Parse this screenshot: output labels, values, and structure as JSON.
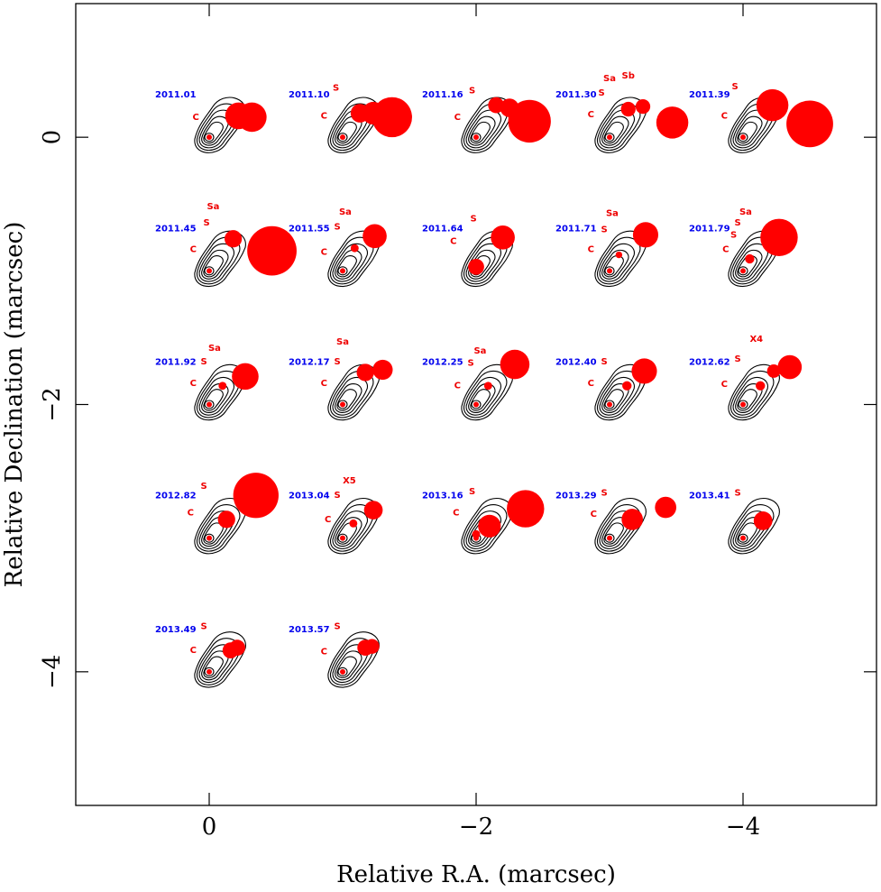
{
  "chart_data": {
    "type": "scatter",
    "title": "",
    "xlabel": "Relative R.A. (marcsec)",
    "ylabel": "Relative Declination (marcsec)",
    "xlim": [
      1.0,
      -5.0
    ],
    "ylim": [
      -5.0,
      1.0
    ],
    "xticks": [
      0,
      -2,
      -4
    ],
    "yticks": [
      0,
      -2,
      -4
    ],
    "xtick_labels": [
      "0",
      "−2",
      "−4"
    ],
    "ytick_labels": [
      "0",
      "−2",
      "−4"
    ],
    "grid": false,
    "legend": "none",
    "colors": {
      "epoch_label": "#0000ee",
      "component": "#ff0000",
      "component_label": "#ee0000",
      "contour": "#000000"
    },
    "epochs": [
      {
        "label": "2011.01",
        "core": [
          0.0,
          0.0
        ],
        "components": [
          {
            "x": -0.22,
            "y": 0.16,
            "r": 0.2
          },
          {
            "x": -0.32,
            "y": 0.15,
            "r": 0.22
          }
        ],
        "labels": [
          {
            "text": "C",
            "x": 0.1,
            "y": 0.13
          }
        ]
      },
      {
        "label": "2011.10",
        "core": [
          -1.0,
          0.0
        ],
        "components": [
          {
            "x": -1.13,
            "y": 0.18,
            "r": 0.14
          },
          {
            "x": -1.23,
            "y": 0.18,
            "r": 0.17
          },
          {
            "x": -1.37,
            "y": 0.15,
            "r": 0.3
          }
        ],
        "labels": [
          {
            "text": "C",
            "x": -0.86,
            "y": 0.14
          },
          {
            "text": "S",
            "x": -0.95,
            "y": 0.35
          }
        ]
      },
      {
        "label": "2011.16",
        "core": [
          -2.0,
          0.0
        ],
        "components": [
          {
            "x": -2.15,
            "y": 0.24,
            "r": 0.12
          },
          {
            "x": -2.25,
            "y": 0.22,
            "r": 0.14
          },
          {
            "x": -2.4,
            "y": 0.12,
            "r": 0.32
          }
        ],
        "labels": [
          {
            "text": "C",
            "x": -1.86,
            "y": 0.13
          },
          {
            "text": "S",
            "x": -1.97,
            "y": 0.33
          }
        ]
      },
      {
        "label": "2011.30",
        "core": [
          -3.0,
          0.0
        ],
        "components": [
          {
            "x": -3.14,
            "y": 0.21,
            "r": 0.11
          },
          {
            "x": -3.25,
            "y": 0.23,
            "r": 0.11
          },
          {
            "x": -3.47,
            "y": 0.11,
            "r": 0.24
          }
        ],
        "labels": [
          {
            "text": "C",
            "x": -2.86,
            "y": 0.15
          },
          {
            "text": "S",
            "x": -2.94,
            "y": 0.31
          },
          {
            "text": "Sa",
            "x": -3.0,
            "y": 0.42
          },
          {
            "text": "Sb",
            "x": -3.14,
            "y": 0.44
          }
        ]
      },
      {
        "label": "2011.39",
        "core": [
          -4.0,
          0.0
        ],
        "components": [
          {
            "x": -4.22,
            "y": 0.24,
            "r": 0.24
          },
          {
            "x": -4.5,
            "y": 0.1,
            "r": 0.35
          }
        ],
        "labels": [
          {
            "text": "C",
            "x": -3.86,
            "y": 0.14
          },
          {
            "text": "S",
            "x": -3.94,
            "y": 0.36
          }
        ]
      },
      {
        "label": "2011.45",
        "core": [
          0.0,
          -1.0
        ],
        "components": [
          {
            "x": -0.18,
            "y": -0.76,
            "r": 0.13
          },
          {
            "x": -0.47,
            "y": -0.85,
            "r": 0.37
          }
        ],
        "labels": [
          {
            "text": "C",
            "x": 0.12,
            "y": -0.86
          },
          {
            "text": "S",
            "x": 0.02,
            "y": -0.66
          },
          {
            "text": "Sa",
            "x": -0.03,
            "y": -0.54
          }
        ]
      },
      {
        "label": "2011.55",
        "core": [
          -1.0,
          -1.0
        ],
        "components": [
          {
            "x": -1.09,
            "y": -0.83,
            "r": 0.06
          },
          {
            "x": -1.24,
            "y": -0.74,
            "r": 0.18
          }
        ],
        "labels": [
          {
            "text": "C",
            "x": -0.86,
            "y": -0.88
          },
          {
            "text": "S",
            "x": -0.96,
            "y": -0.69
          },
          {
            "text": "Sa",
            "x": -1.02,
            "y": -0.58
          }
        ]
      },
      {
        "label": "2011.64",
        "core": [
          -2.0,
          -1.0
        ],
        "components": [
          {
            "x": -2.0,
            "y": -0.97,
            "r": 0.12
          },
          {
            "x": -2.2,
            "y": -0.75,
            "r": 0.18
          }
        ],
        "labels": [
          {
            "text": "C",
            "x": -1.83,
            "y": -0.8
          },
          {
            "text": "S",
            "x": -1.98,
            "y": -0.63
          }
        ]
      },
      {
        "label": "2011.71",
        "core": [
          -3.0,
          -1.0
        ],
        "components": [
          {
            "x": -3.07,
            "y": -0.88,
            "r": 0.05
          },
          {
            "x": -3.27,
            "y": -0.73,
            "r": 0.19
          }
        ],
        "labels": [
          {
            "text": "C",
            "x": -2.86,
            "y": -0.86
          },
          {
            "text": "S",
            "x": -2.96,
            "y": -0.71
          },
          {
            "text": "Sa",
            "x": -3.02,
            "y": -0.59
          }
        ]
      },
      {
        "label": "2011.79",
        "core": [
          -4.0,
          -1.0
        ],
        "components": [
          {
            "x": -4.05,
            "y": -0.91,
            "r": 0.07
          },
          {
            "x": -4.27,
            "y": -0.75,
            "r": 0.28
          }
        ],
        "labels": [
          {
            "text": "C",
            "x": -3.87,
            "y": -0.86
          },
          {
            "text": "S",
            "x": -3.93,
            "y": -0.75
          },
          {
            "text": "S",
            "x": -3.96,
            "y": -0.66
          },
          {
            "text": "Sa",
            "x": -4.02,
            "y": -0.58
          }
        ]
      },
      {
        "label": "2011.92",
        "core": [
          0.0,
          -2.0
        ],
        "components": [
          {
            "x": -0.1,
            "y": -1.86,
            "r": 0.06
          },
          {
            "x": -0.27,
            "y": -1.79,
            "r": 0.2
          }
        ],
        "labels": [
          {
            "text": "C",
            "x": 0.12,
            "y": -1.86
          },
          {
            "text": "S",
            "x": 0.04,
            "y": -1.7
          },
          {
            "text": "Sa",
            "x": -0.04,
            "y": -1.6
          }
        ]
      },
      {
        "label": "2012.17",
        "core": [
          -1.0,
          -2.0
        ],
        "components": [
          {
            "x": -1.17,
            "y": -1.76,
            "r": 0.13
          },
          {
            "x": -1.3,
            "y": -1.74,
            "r": 0.15
          }
        ],
        "labels": [
          {
            "text": "C",
            "x": -0.86,
            "y": -1.86
          },
          {
            "text": "S",
            "x": -0.96,
            "y": -1.7
          },
          {
            "text": "Sa",
            "x": -1.0,
            "y": -1.55
          }
        ]
      },
      {
        "label": "2012.25",
        "core": [
          -2.0,
          -2.0
        ],
        "components": [
          {
            "x": -2.09,
            "y": -1.86,
            "r": 0.06
          },
          {
            "x": -2.29,
            "y": -1.7,
            "r": 0.22
          }
        ],
        "labels": [
          {
            "text": "C",
            "x": -1.86,
            "y": -1.88
          },
          {
            "text": "S",
            "x": -1.96,
            "y": -1.71
          },
          {
            "text": "Sa",
            "x": -2.03,
            "y": -1.62
          }
        ]
      },
      {
        "label": "2012.40",
        "core": [
          -3.0,
          -2.0
        ],
        "components": [
          {
            "x": -3.13,
            "y": -1.86,
            "r": 0.07
          },
          {
            "x": -3.26,
            "y": -1.75,
            "r": 0.19
          }
        ],
        "labels": [
          {
            "text": "C",
            "x": -2.86,
            "y": -1.86
          },
          {
            "text": "S",
            "x": -2.96,
            "y": -1.7
          }
        ]
      },
      {
        "label": "2012.62",
        "core": [
          -4.0,
          -2.0
        ],
        "components": [
          {
            "x": -4.13,
            "y": -1.86,
            "r": 0.07
          },
          {
            "x": -4.23,
            "y": -1.75,
            "r": 0.1
          },
          {
            "x": -4.35,
            "y": -1.72,
            "r": 0.18
          }
        ],
        "labels": [
          {
            "text": "C",
            "x": -3.86,
            "y": -1.87
          },
          {
            "text": "S",
            "x": -3.96,
            "y": -1.68
          },
          {
            "text": "X4",
            "x": -4.1,
            "y": -1.53
          }
        ]
      },
      {
        "label": "2012.82",
        "core": [
          0.0,
          -3.0
        ],
        "components": [
          {
            "x": -0.13,
            "y": -2.86,
            "r": 0.13
          },
          {
            "x": -0.35,
            "y": -2.68,
            "r": 0.34
          }
        ],
        "labels": [
          {
            "text": "C",
            "x": 0.14,
            "y": -2.83
          },
          {
            "text": "S",
            "x": 0.04,
            "y": -2.63
          }
        ]
      },
      {
        "label": "2013.04",
        "core": [
          -1.0,
          -3.0
        ],
        "components": [
          {
            "x": -1.08,
            "y": -2.89,
            "r": 0.06
          },
          {
            "x": -1.23,
            "y": -2.79,
            "r": 0.14
          }
        ],
        "labels": [
          {
            "text": "C",
            "x": -0.89,
            "y": -2.88
          },
          {
            "text": "S",
            "x": -0.96,
            "y": -2.7
          },
          {
            "text": "X5",
            "x": -1.05,
            "y": -2.59
          }
        ]
      },
      {
        "label": "2013.16",
        "core": [
          -2.0,
          -3.0
        ],
        "components": [
          {
            "x": -2.0,
            "y": -2.97,
            "r": 0.06
          },
          {
            "x": -2.1,
            "y": -2.91,
            "r": 0.17
          },
          {
            "x": -2.37,
            "y": -2.78,
            "r": 0.28
          }
        ],
        "labels": [
          {
            "text": "C",
            "x": -1.85,
            "y": -2.83
          },
          {
            "text": "S",
            "x": -1.97,
            "y": -2.67
          }
        ]
      },
      {
        "label": "2013.29",
        "core": [
          -3.0,
          -3.0
        ],
        "components": [
          {
            "x": -3.17,
            "y": -2.86,
            "r": 0.16
          },
          {
            "x": -3.42,
            "y": -2.77,
            "r": 0.16
          }
        ],
        "labels": [
          {
            "text": "C",
            "x": -2.88,
            "y": -2.84
          },
          {
            "text": "S",
            "x": -2.96,
            "y": -2.68
          }
        ]
      },
      {
        "label": "2013.41",
        "core": [
          -4.0,
          -3.0
        ],
        "components": [
          {
            "x": -4.15,
            "y": -2.87,
            "r": 0.14
          }
        ],
        "labels": [
          {
            "text": "S",
            "x": -3.96,
            "y": -2.68
          }
        ]
      },
      {
        "label": "2013.49",
        "core": [
          0.0,
          -4.0
        ],
        "components": [
          {
            "x": -0.16,
            "y": -3.84,
            "r": 0.12
          },
          {
            "x": -0.21,
            "y": -3.82,
            "r": 0.12
          }
        ],
        "labels": [
          {
            "text": "C",
            "x": 0.12,
            "y": -3.86
          },
          {
            "text": "S",
            "x": 0.04,
            "y": -3.68
          }
        ]
      },
      {
        "label": "2013.57",
        "core": [
          -1.0,
          -4.0
        ],
        "components": [
          {
            "x": -1.17,
            "y": -3.82,
            "r": 0.12
          },
          {
            "x": -1.22,
            "y": -3.81,
            "r": 0.11
          }
        ],
        "labels": [
          {
            "text": "C",
            "x": -0.86,
            "y": -3.87
          },
          {
            "text": "S",
            "x": -0.96,
            "y": -3.68
          }
        ]
      }
    ]
  }
}
